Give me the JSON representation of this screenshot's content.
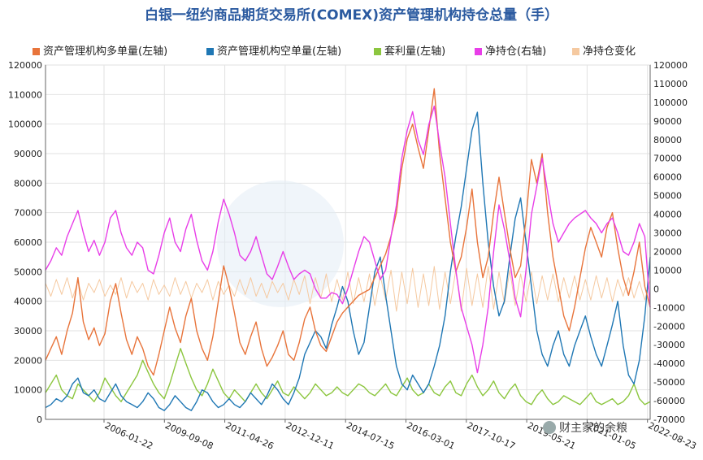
{
  "chart_data": {
    "type": "line",
    "title": "白银一纽约商品期货交易所(COMEX)资产管理机构持仓总量（手）",
    "left_axis": {
      "min": 0,
      "max": 120000,
      "ticks": [
        "0",
        "10000",
        "20000",
        "30000",
        "40000",
        "50000",
        "60000",
        "70000",
        "80000",
        "90000",
        "100000",
        "110000",
        "120000"
      ]
    },
    "right_axis": {
      "min": -70000,
      "max": 120000,
      "ticks": [
        "120000",
        "110000",
        "100000",
        "90000",
        "80000",
        "70000",
        "60000",
        "50000",
        "40000",
        "30000",
        "20000",
        "10000",
        "0",
        "-10000",
        "-20000",
        "-30000",
        "-40000",
        "-50000",
        "-60000",
        "-70000"
      ]
    },
    "x_ticks": [
      "2006-01-22",
      "2009-09-08",
      "2011-04-26",
      "2012-12-11",
      "2014-07-15",
      "2016-03-01",
      "2017-10-17",
      "2019-05-21",
      "2021-01-05",
      "2022-08-23"
    ],
    "grid": true,
    "legend_position": "top",
    "series": [
      {
        "name": "资产管理机构多单量(左轴)",
        "axis": "left",
        "color": "#e8743b",
        "values": [
          20000,
          24000,
          28000,
          22000,
          30000,
          36000,
          48000,
          33000,
          27000,
          31000,
          25000,
          29000,
          40000,
          46000,
          36000,
          27000,
          22000,
          28000,
          24000,
          18000,
          15000,
          22000,
          30000,
          38000,
          31000,
          26000,
          35000,
          41000,
          30000,
          24000,
          20000,
          28000,
          40000,
          52000,
          45000,
          36000,
          26000,
          22000,
          28000,
          33000,
          24000,
          18000,
          21000,
          25000,
          30000,
          22000,
          20000,
          26000,
          34000,
          38000,
          30000,
          25000,
          23000,
          28000,
          33000,
          36000,
          38000,
          40000,
          42000,
          43000,
          44000,
          48000,
          52000,
          56000,
          62000,
          70000,
          85000,
          95000,
          100000,
          92000,
          85000,
          98000,
          112000,
          90000,
          75000,
          60000,
          50000,
          55000,
          65000,
          78000,
          60000,
          48000,
          55000,
          70000,
          82000,
          70000,
          58000,
          48000,
          52000,
          68000,
          88000,
          80000,
          90000,
          70000,
          55000,
          45000,
          35000,
          30000,
          38000,
          48000,
          58000,
          65000,
          60000,
          55000,
          65000,
          70000,
          58000,
          48000,
          42000,
          50000,
          60000,
          45000,
          38000
        ]
      },
      {
        "name": "资产管理机构空单量(左轴)",
        "axis": "left",
        "color": "#1f77b4",
        "values": [
          4000,
          5000,
          7000,
          6000,
          8000,
          12000,
          14000,
          9000,
          8000,
          10000,
          7000,
          6000,
          9000,
          12000,
          8000,
          6000,
          5000,
          4000,
          6000,
          9000,
          7000,
          4000,
          3000,
          5000,
          8000,
          6000,
          4000,
          3000,
          6000,
          10000,
          9000,
          6000,
          4000,
          5000,
          7000,
          5000,
          4000,
          6000,
          9000,
          7000,
          5000,
          8000,
          12000,
          10000,
          7000,
          5000,
          9000,
          14000,
          22000,
          26000,
          30000,
          28000,
          24000,
          32000,
          38000,
          45000,
          40000,
          30000,
          22000,
          26000,
          38000,
          50000,
          55000,
          42000,
          30000,
          18000,
          12000,
          10000,
          15000,
          12000,
          9000,
          12000,
          18000,
          25000,
          35000,
          50000,
          62000,
          72000,
          85000,
          98000,
          104000,
          80000,
          60000,
          45000,
          35000,
          40000,
          55000,
          68000,
          75000,
          60000,
          45000,
          30000,
          22000,
          18000,
          25000,
          30000,
          22000,
          18000,
          25000,
          30000,
          35000,
          28000,
          22000,
          18000,
          25000,
          32000,
          40000,
          25000,
          15000,
          12000,
          20000,
          35000,
          55000
        ]
      },
      {
        "name": "套利量(左轴)",
        "axis": "left",
        "color": "#8cc63f",
        "values": [
          9000,
          12000,
          15000,
          10000,
          8000,
          7000,
          12000,
          10000,
          8000,
          6000,
          9000,
          14000,
          11000,
          8000,
          6000,
          9000,
          12000,
          15000,
          20000,
          16000,
          12000,
          9000,
          7000,
          12000,
          18000,
          24000,
          19000,
          14000,
          10000,
          8000,
          12000,
          17000,
          13000,
          9000,
          7000,
          10000,
          8000,
          6000,
          9000,
          12000,
          9000,
          7000,
          10000,
          13000,
          9000,
          8000,
          11000,
          9000,
          7000,
          9000,
          12000,
          10000,
          8000,
          9000,
          11000,
          9000,
          8000,
          10000,
          12000,
          11000,
          9000,
          8000,
          10000,
          12000,
          9000,
          8000,
          11000,
          14000,
          10000,
          8000,
          9000,
          12000,
          9000,
          8000,
          11000,
          13000,
          9000,
          8000,
          12000,
          15000,
          11000,
          8000,
          10000,
          13000,
          9000,
          7000,
          10000,
          12000,
          8000,
          6000,
          5000,
          8000,
          10000,
          7000,
          5000,
          6000,
          8000,
          7000,
          6000,
          5000,
          7000,
          9000,
          6000,
          5000,
          6000,
          7000,
          5000,
          6000,
          8000,
          12000,
          7000,
          5000,
          6000
        ]
      },
      {
        "name": "净持仓(右轴)",
        "axis": "right",
        "color": "#e83ee8",
        "values": [
          10000,
          15000,
          22000,
          18000,
          28000,
          35000,
          42000,
          30000,
          20000,
          26000,
          18000,
          25000,
          38000,
          42000,
          30000,
          22000,
          18000,
          25000,
          22000,
          10000,
          8000,
          18000,
          30000,
          38000,
          25000,
          20000,
          32000,
          40000,
          26000,
          15000,
          10000,
          20000,
          36000,
          48000,
          40000,
          30000,
          18000,
          15000,
          20000,
          28000,
          18000,
          8000,
          5000,
          12000,
          20000,
          12000,
          5000,
          8000,
          10000,
          8000,
          0,
          -5000,
          -5000,
          -2000,
          -3000,
          -8000,
          0,
          10000,
          20000,
          28000,
          25000,
          15000,
          5000,
          10000,
          28000,
          45000,
          70000,
          85000,
          95000,
          80000,
          72000,
          88000,
          98000,
          78000,
          60000,
          35000,
          10000,
          -10000,
          -20000,
          -30000,
          -45000,
          -30000,
          -10000,
          20000,
          45000,
          32000,
          15000,
          -5000,
          -15000,
          10000,
          40000,
          55000,
          70000,
          52000,
          35000,
          25000,
          30000,
          35000,
          38000,
          40000,
          42000,
          38000,
          35000,
          30000,
          35000,
          38000,
          30000,
          20000,
          18000,
          25000,
          35000,
          28000,
          -10000
        ]
      },
      {
        "name": "净持仓变化",
        "axis": "right",
        "color": "#f5c9a0",
        "values": [
          3000,
          -4000,
          5000,
          -3000,
          6000,
          -5000,
          4000,
          -6000,
          3000,
          -2000,
          5000,
          -4000,
          2000,
          -3000,
          6000,
          -5000,
          4000,
          -2000,
          3000,
          -6000,
          5000,
          -3000,
          2000,
          -4000,
          6000,
          -3000,
          4000,
          -5000,
          3000,
          -2000,
          5000,
          -6000,
          4000,
          -3000,
          2000,
          -4000,
          5000,
          -3000,
          6000,
          -4000,
          3000,
          -5000,
          4000,
          -2000,
          3000,
          -6000,
          5000,
          -3000,
          7000,
          -8000,
          6000,
          -5000,
          8000,
          -7000,
          5000,
          -6000,
          9000,
          -8000,
          6000,
          -7000,
          8000,
          -9000,
          7000,
          -6000,
          10000,
          -12000,
          9000,
          -8000,
          11000,
          -10000,
          8000,
          -9000,
          12000,
          -11000,
          9000,
          -8000,
          10000,
          -12000,
          11000,
          -9000,
          8000,
          -10000,
          12000,
          -11000,
          9000,
          -8000,
          10000,
          -9000,
          8000,
          -7000,
          9000,
          -8000,
          7000,
          -6000,
          8000,
          -7000,
          6000,
          -5000,
          7000,
          -6000,
          5000,
          -6000,
          7000,
          -5000,
          6000,
          -7000,
          5000,
          -4000,
          6000,
          -5000,
          4000,
          -6000,
          5000
        ]
      }
    ]
  },
  "watermark": {
    "text": "财主家的余粮",
    "icon": "wechat-icon"
  }
}
